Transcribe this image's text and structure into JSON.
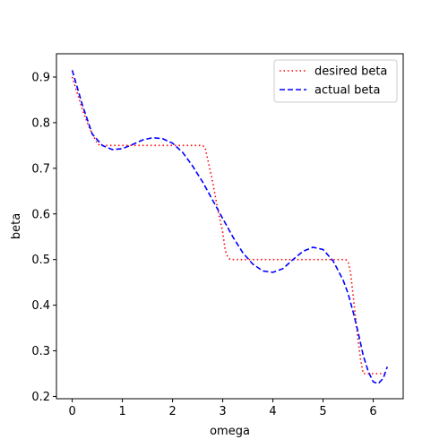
{
  "chart_data": {
    "type": "line",
    "xlabel": "omega",
    "ylabel": "beta",
    "xlim": [
      -0.314,
      6.597
    ],
    "ylim": [
      0.195,
      0.951
    ],
    "xticks": [
      0,
      1,
      2,
      3,
      4,
      5,
      6
    ],
    "yticks": [
      0.2,
      0.3,
      0.4,
      0.5,
      0.6,
      0.7,
      0.8,
      0.9
    ],
    "legend_position": "top-right",
    "series": [
      {
        "name": "desired beta",
        "color": "#ff0000",
        "style": "dotted",
        "x": [
          0.0,
          0.1,
          0.2,
          0.3,
          0.4,
          0.5,
          0.55,
          0.6,
          1.0,
          1.5,
          2.0,
          2.5,
          2.6,
          2.65,
          2.7,
          2.8,
          2.9,
          3.0,
          3.05,
          3.1,
          3.15,
          3.2,
          3.5,
          4.0,
          4.5,
          5.0,
          5.45,
          5.5,
          5.55,
          5.6,
          5.65,
          5.7,
          5.75,
          5.8,
          6.0,
          6.28
        ],
        "y": [
          0.9,
          0.865,
          0.83,
          0.8,
          0.775,
          0.755,
          0.75,
          0.75,
          0.75,
          0.75,
          0.75,
          0.75,
          0.75,
          0.745,
          0.72,
          0.67,
          0.61,
          0.56,
          0.52,
          0.505,
          0.5,
          0.5,
          0.5,
          0.5,
          0.5,
          0.5,
          0.5,
          0.495,
          0.47,
          0.42,
          0.37,
          0.32,
          0.28,
          0.25,
          0.25,
          0.25
        ]
      },
      {
        "name": "actual beta",
        "color": "#0000ff",
        "style": "dashed",
        "x": [
          0.0,
          0.2,
          0.4,
          0.6,
          0.8,
          1.0,
          1.2,
          1.4,
          1.6,
          1.8,
          2.0,
          2.2,
          2.4,
          2.6,
          2.8,
          3.0,
          3.2,
          3.4,
          3.6,
          3.8,
          4.0,
          4.2,
          4.4,
          4.6,
          4.8,
          5.0,
          5.2,
          5.4,
          5.5,
          5.6,
          5.7,
          5.8,
          5.9,
          6.0,
          6.1,
          6.2,
          6.28
        ],
        "y": [
          0.915,
          0.84,
          0.775,
          0.75,
          0.741,
          0.743,
          0.752,
          0.762,
          0.767,
          0.765,
          0.755,
          0.735,
          0.705,
          0.67,
          0.63,
          0.59,
          0.55,
          0.515,
          0.49,
          0.475,
          0.472,
          0.48,
          0.5,
          0.518,
          0.527,
          0.522,
          0.497,
          0.455,
          0.425,
          0.385,
          0.34,
          0.29,
          0.255,
          0.232,
          0.228,
          0.24,
          0.265
        ]
      }
    ]
  }
}
